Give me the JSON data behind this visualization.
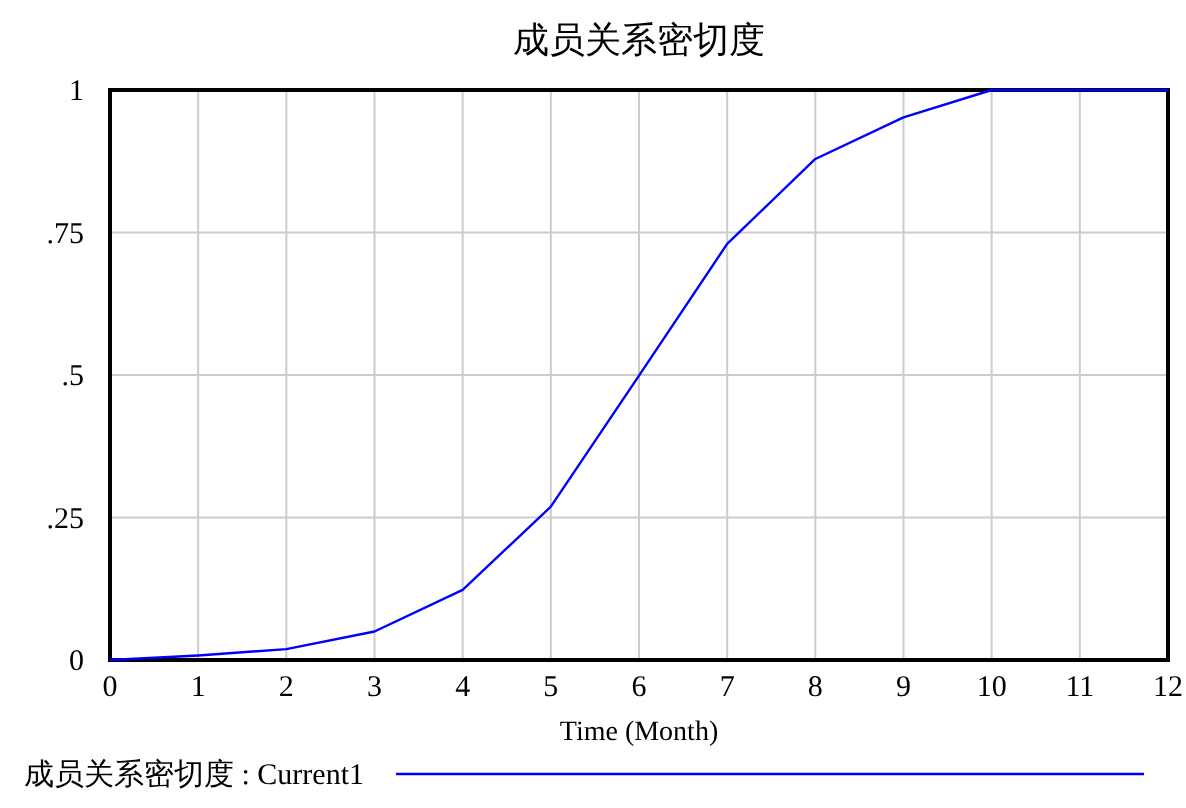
{
  "chart_data": {
    "type": "line",
    "title": "成员关系密切度",
    "xlabel": "Time (Month)",
    "x": [
      0,
      1,
      2,
      3,
      4,
      5,
      6,
      7,
      8,
      9,
      10,
      11,
      12
    ],
    "series": [
      {
        "name": "成员关系密切度 : Current1",
        "color": "#0000ff",
        "values": [
          0,
          0.008,
          0.019,
          0.05,
          0.123,
          0.269,
          0.499,
          0.73,
          0.879,
          0.952,
          1.0,
          1.0,
          1.0
        ]
      }
    ],
    "xlim": [
      0,
      12
    ],
    "ylim": [
      0,
      1
    ],
    "xticks": [
      0,
      1,
      2,
      3,
      4,
      5,
      6,
      7,
      8,
      9,
      10,
      11,
      12
    ],
    "yticks": [
      0,
      {
        "value": 0.25,
        "label": ".25"
      },
      {
        "value": 0.5,
        "label": ".5"
      },
      {
        "value": 0.75,
        "label": ".75"
      },
      1
    ],
    "grid": true,
    "legend": "bottom",
    "marker": "none",
    "line_style": "solid"
  }
}
